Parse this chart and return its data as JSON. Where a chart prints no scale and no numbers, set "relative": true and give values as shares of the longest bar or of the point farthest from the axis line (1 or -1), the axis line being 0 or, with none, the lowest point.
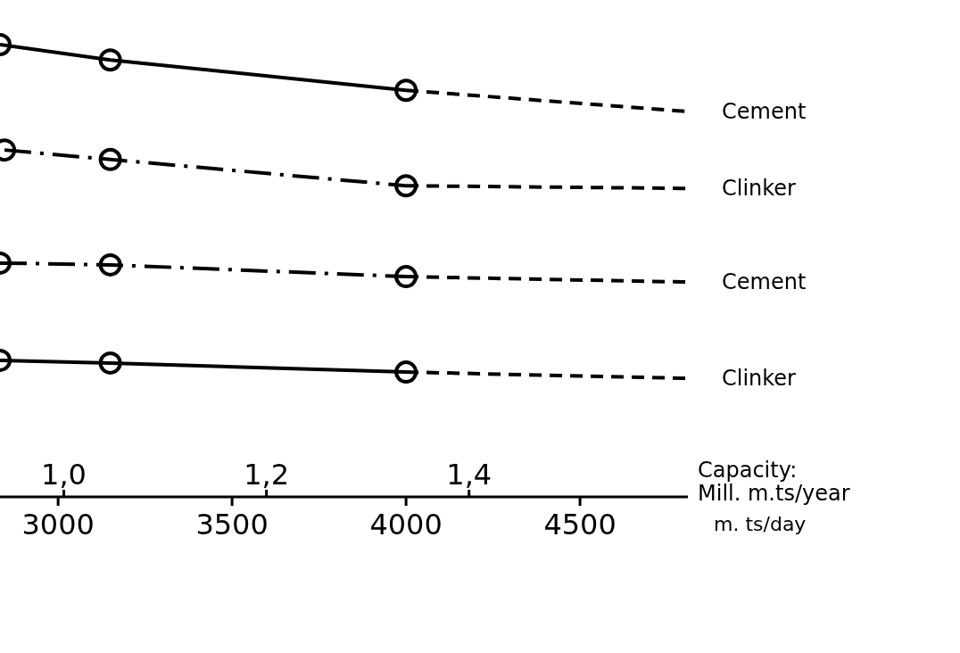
{
  "chart_data": {
    "type": "line",
    "relative": true,
    "xlabel": "m. ts/day",
    "x2label": "Capacity: Mill. m.ts/year",
    "xlim": [
      2833,
      4810
    ],
    "xticks": [
      3000,
      3500,
      4000,
      4500
    ],
    "x2lim": [
      0.937,
      1.616
    ],
    "x2ticks": [
      {
        "value": 1.0,
        "label": "1,0"
      },
      {
        "value": 1.2,
        "label": "1,2"
      },
      {
        "value": 1.4,
        "label": "1,4"
      }
    ],
    "grid": false,
    "series": [
      {
        "color": "#000000",
        "x": [
          2833,
          3150,
          4000
        ],
        "values": [
          1,
          0.966,
          0.899
        ],
        "marker": "circle",
        "line_style": "solid"
      },
      {
        "name": "Cement",
        "color": "#000000",
        "x": [
          4000,
          4810
        ],
        "values": [
          0.899,
          0.852
        ],
        "marker": "none",
        "line_style": "dashed"
      },
      {
        "color": "#000000",
        "x": [
          2846,
          3150,
          4000
        ],
        "values": [
          0.767,
          0.746,
          0.688
        ],
        "marker": "circle",
        "line_style": "dotted"
      },
      {
        "name": "Clinker",
        "color": "#000000",
        "x": [
          4000,
          4810
        ],
        "values": [
          0.688,
          0.682
        ],
        "marker": "none",
        "line_style": "dashed"
      },
      {
        "color": "#000000",
        "x": [
          2833,
          3150,
          4000
        ],
        "values": [
          0.517,
          0.513,
          0.487
        ],
        "marker": "circle",
        "line_style": "dotted"
      },
      {
        "name": "Cement",
        "color": "#000000",
        "x": [
          4000,
          4810
        ],
        "values": [
          0.487,
          0.475
        ],
        "marker": "none",
        "line_style": "dashed"
      },
      {
        "color": "#000000",
        "x": [
          2833,
          3150,
          4000
        ],
        "values": [
          0.302,
          0.296,
          0.276
        ],
        "marker": "circle",
        "line_style": "solid"
      },
      {
        "name": "Clinker",
        "color": "#000000",
        "x": [
          4000,
          4810
        ],
        "values": [
          0.276,
          0.262
        ],
        "marker": "none",
        "line_style": "dashed"
      }
    ]
  }
}
